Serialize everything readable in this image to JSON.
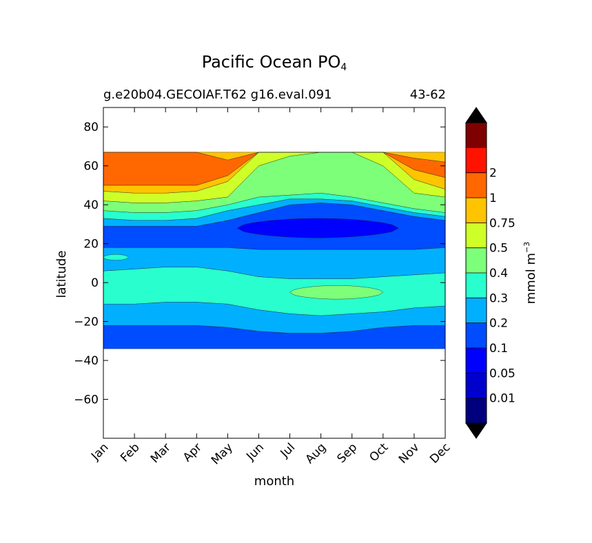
{
  "chart_data": {
    "type": "contour",
    "title": "Pacific Ocean PO",
    "title_subscript": "4",
    "subtitle_left": "g.e20b04.GECOIAF.T62 g16.eval.091",
    "subtitle_right": "43-62",
    "xlabel": "month",
    "ylabel": "latitude",
    "x_categories": [
      "Jan",
      "Feb",
      "Mar",
      "Apr",
      "May",
      "Jun",
      "Jul",
      "Aug",
      "Sep",
      "Oct",
      "Nov",
      "Dec"
    ],
    "xlim": [
      1,
      12
    ],
    "ylim": [
      -80,
      90
    ],
    "y_ticks": [
      80,
      60,
      40,
      20,
      0,
      -20,
      -40,
      -60
    ],
    "y_tick_labels": [
      "80",
      "60",
      "40",
      "20",
      "0",
      "−20",
      "−40",
      "−60"
    ],
    "data_lat_range": [
      -34,
      67
    ],
    "colorbar": {
      "label": "mmol m",
      "label_superscript": "−3",
      "extend": "both",
      "levels": [
        "0.01",
        "0.05",
        "0.1",
        "0.2",
        "0.3",
        "0.4",
        "0.5",
        "0.75",
        "1",
        "2"
      ],
      "colors": [
        "#00007f",
        "#0000cd",
        "#0000ff",
        "#004cff",
        "#00b0ff",
        "#29ffce",
        "#7dff7a",
        "#ceff29",
        "#ffc400",
        "#ff6800",
        "#ff1300",
        "#7f0000"
      ]
    },
    "bands": [
      {
        "range": "0.1-0.2",
        "from": [
          -34,
          -34,
          -34,
          -34,
          -34,
          -34,
          -34,
          -34,
          -34,
          -34,
          -34,
          -34
        ],
        "to": [
          -22,
          -22,
          -22,
          -22,
          -23,
          -25,
          -26,
          -26,
          -25,
          -23,
          -22,
          -22
        ]
      },
      {
        "range": "0.2-0.3",
        "from": [
          -22,
          -22,
          -22,
          -22,
          -23,
          -25,
          -26,
          -26,
          -25,
          -23,
          -22,
          -22
        ],
        "to": [
          -11,
          -11,
          -10,
          -10,
          -11,
          -14,
          -16,
          -17,
          -16,
          -15,
          -13,
          -12
        ]
      },
      {
        "range": "0.3-0.4",
        "from": [
          -11,
          -11,
          -10,
          -10,
          -11,
          -14,
          -16,
          -17,
          -16,
          -15,
          -13,
          -12
        ],
        "to": [
          6,
          7,
          8,
          8,
          6,
          3,
          2,
          2,
          2,
          3,
          4,
          5
        ]
      },
      {
        "range": "0.2-0.3",
        "from": [
          6,
          7,
          8,
          8,
          6,
          3,
          2,
          2,
          2,
          3,
          4,
          5
        ],
        "to": [
          18,
          18,
          18,
          18,
          18,
          17,
          17,
          17,
          17,
          17,
          17,
          18
        ]
      },
      {
        "range": "0.1-0.2",
        "from": [
          18,
          18,
          18,
          18,
          18,
          17,
          17,
          17,
          17,
          17,
          17,
          18
        ],
        "to": [
          29,
          29,
          29,
          29,
          32,
          36,
          40,
          41,
          40,
          37,
          34,
          32
        ]
      },
      {
        "range": "0.2-0.3",
        "from": [
          29,
          29,
          29,
          29,
          32,
          36,
          40,
          41,
          40,
          37,
          34,
          32
        ],
        "to": [
          33,
          32,
          32,
          33,
          37,
          40,
          43,
          43,
          42,
          39,
          36,
          34
        ]
      },
      {
        "range": "0.3-0.4",
        "from": [
          33,
          32,
          32,
          33,
          37,
          40,
          43,
          43,
          42,
          39,
          36,
          34
        ],
        "to": [
          37,
          36,
          36,
          37,
          40,
          44,
          45,
          46,
          44,
          41,
          38,
          36
        ]
      },
      {
        "range": "0.4-0.5",
        "from": [
          37,
          36,
          36,
          37,
          40,
          44,
          45,
          46,
          44,
          41,
          38,
          36
        ],
        "to": [
          42,
          41,
          41,
          42,
          44,
          60,
          65,
          67,
          67,
          60,
          46,
          44
        ]
      },
      {
        "range": "0.5-0.75",
        "from": [
          42,
          41,
          41,
          42,
          44,
          60,
          65,
          67,
          67,
          60,
          46,
          44
        ],
        "to": [
          47,
          46,
          46,
          47,
          52,
          67,
          67,
          67,
          67,
          67,
          53,
          48
        ]
      },
      {
        "range": "0.75-1",
        "from": [
          47,
          46,
          46,
          47,
          52,
          67,
          67,
          67,
          67,
          67,
          53,
          48
        ],
        "to": [
          50,
          50,
          50,
          50,
          55,
          67,
          67,
          67,
          67,
          67,
          58,
          54
        ]
      },
      {
        "range": "1-2",
        "from": [
          50,
          50,
          50,
          50,
          55,
          67,
          67,
          67,
          67,
          67,
          58,
          54
        ],
        "to": [
          67,
          67,
          67,
          67,
          63,
          67,
          67,
          67,
          67,
          67,
          64,
          62
        ]
      },
      {
        "range": "0.75-1",
        "from": [
          67,
          67,
          67,
          67,
          63,
          67,
          67,
          67,
          67,
          67,
          64,
          62
        ],
        "to": [
          67,
          67,
          67,
          67,
          67,
          67,
          67,
          67,
          67,
          67,
          67,
          67
        ]
      }
    ],
    "patches": [
      {
        "range": "0.05-0.1",
        "month_range": [
          5.3,
          10.5
        ],
        "center_lat": 28,
        "half_width": 5
      },
      {
        "range": "0.4-0.5",
        "month_range": [
          7.0,
          10.0
        ],
        "center_lat": -5,
        "half_width": 3.5
      },
      {
        "range": "0.3-0.4",
        "month_range": [
          1.0,
          1.8
        ],
        "center_lat": 13,
        "half_width": 1.5
      }
    ]
  }
}
